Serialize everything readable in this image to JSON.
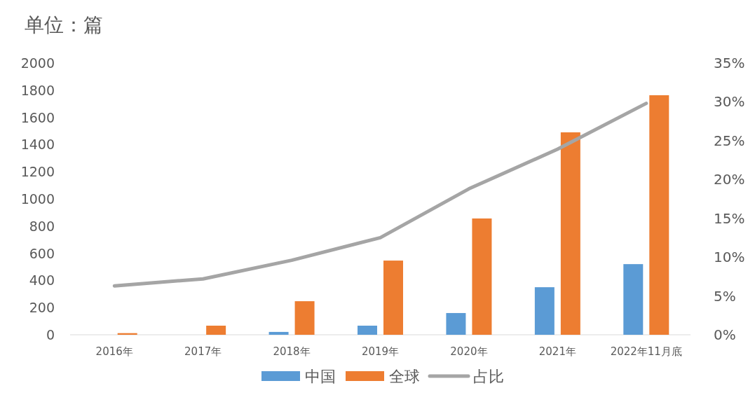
{
  "chart_data": {
    "type": "bar",
    "title": "单位：篇",
    "categories": [
      "2016年",
      "2017年",
      "2018年",
      "2019年",
      "2020年",
      "2021年",
      "2022年11月底"
    ],
    "series": [
      {
        "name": "中国",
        "color": "#5b9bd5",
        "values": [
          0,
          0,
          21,
          67,
          160,
          350,
          520
        ]
      },
      {
        "name": "全球",
        "color": "#ed7d31",
        "values": [
          12,
          67,
          247,
          546,
          856,
          1490,
          1763
        ]
      },
      {
        "name": "占比",
        "type": "line",
        "axis": "y2",
        "color": "#a5a5a5",
        "values": [
          6.3,
          7.2,
          9.6,
          12.5,
          18.8,
          23.9,
          29.8
        ]
      }
    ],
    "ylim": [
      0,
      2000
    ],
    "yticks": [
      0,
      200,
      400,
      600,
      800,
      1000,
      1200,
      1400,
      1600,
      1800,
      2000
    ],
    "y2lim": [
      0,
      35
    ],
    "y2ticks": [
      {
        "value": 0,
        "label": "0%"
      },
      {
        "value": 5,
        "label": "5%"
      },
      {
        "value": 10,
        "label": "10%"
      },
      {
        "value": 15,
        "label": "15%"
      },
      {
        "value": 20,
        "label": "20%"
      },
      {
        "value": 25,
        "label": "25%"
      },
      {
        "value": 30,
        "label": "30%"
      },
      {
        "value": 35,
        "label": "35%"
      }
    ],
    "legend": "bottom"
  }
}
